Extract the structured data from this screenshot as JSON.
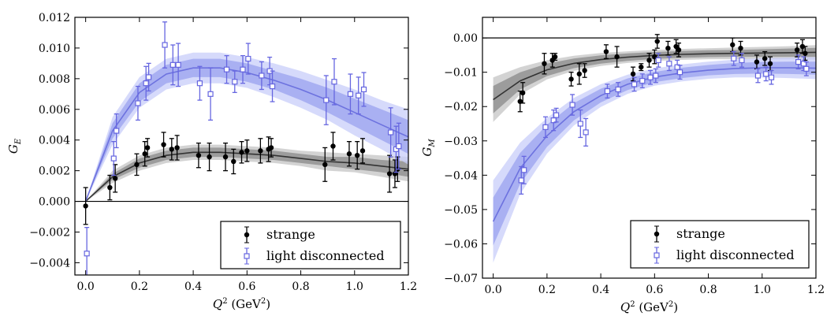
{
  "chart_data": [
    {
      "type": "scatter",
      "panel": "left",
      "ylabel_symbol": "G",
      "ylabel_sub": "E",
      "xlabel_q": "Q",
      "xlabel_sup": "2",
      "xlabel_unit_pre": " (GeV",
      "xlabel_unit_sup": "2",
      "xlabel_unit_post": ")",
      "xlim": [
        -0.04,
        1.2
      ],
      "ylim": [
        -0.0048,
        0.012
      ],
      "xticks": [
        0.0,
        0.2,
        0.4,
        0.6,
        0.8,
        1.0,
        1.2
      ],
      "xtick_labels": [
        "0.0",
        "0.2",
        "0.4",
        "0.6",
        "0.8",
        "1.0",
        "1.2"
      ],
      "yticks": [
        -0.004,
        -0.002,
        0.0,
        0.002,
        0.004,
        0.006,
        0.008,
        0.01,
        0.012
      ],
      "ytick_labels": [
        "−0.004",
        "−0.002",
        "0.000",
        "0.002",
        "0.004",
        "0.006",
        "0.008",
        "0.010",
        "0.012"
      ],
      "zero_line": 0,
      "legend": {
        "position": "bottom-right",
        "entries": [
          "strange",
          "light disconnected"
        ]
      },
      "series": [
        {
          "name": "strange",
          "color": "#000000",
          "marker": "filled-circle",
          "points": [
            [
              0.0,
              -0.0003,
              0.0012
            ],
            [
              0.09,
              0.0009,
              0.0008
            ],
            [
              0.11,
              0.0015,
              0.0009
            ],
            [
              0.19,
              0.0024,
              0.0007
            ],
            [
              0.22,
              0.0031,
              0.0008
            ],
            [
              0.23,
              0.0035,
              0.0006
            ],
            [
              0.29,
              0.0037,
              0.0008
            ],
            [
              0.32,
              0.0034,
              0.0007
            ],
            [
              0.34,
              0.0035,
              0.0008
            ],
            [
              0.42,
              0.003,
              0.0008
            ],
            [
              0.46,
              0.0029,
              0.0009
            ],
            [
              0.52,
              0.0029,
              0.0009
            ],
            [
              0.55,
              0.0026,
              0.0008
            ],
            [
              0.58,
              0.0032,
              0.0007
            ],
            [
              0.6,
              0.0033,
              0.0007
            ],
            [
              0.65,
              0.0033,
              0.0008
            ],
            [
              0.68,
              0.0034,
              0.0008
            ],
            [
              0.69,
              0.0035,
              0.0006
            ],
            [
              0.89,
              0.0024,
              0.0011
            ],
            [
              0.92,
              0.0036,
              0.0009
            ],
            [
              0.98,
              0.0031,
              0.0008
            ],
            [
              1.01,
              0.003,
              0.0009
            ],
            [
              1.03,
              0.0033,
              0.0008
            ],
            [
              1.13,
              0.0018,
              0.0012
            ],
            [
              1.15,
              0.0018,
              0.0009
            ],
            [
              1.16,
              0.0021,
              0.0008
            ]
          ],
          "fit_curve": [
            [
              0.0,
              0.0
            ],
            [
              0.1,
              0.0016
            ],
            [
              0.2,
              0.0025
            ],
            [
              0.3,
              0.003
            ],
            [
              0.4,
              0.0032
            ],
            [
              0.5,
              0.0032
            ],
            [
              0.6,
              0.0031
            ],
            [
              0.7,
              0.003
            ],
            [
              0.8,
              0.0028
            ],
            [
              0.9,
              0.0026
            ],
            [
              1.0,
              0.0025
            ],
            [
              1.1,
              0.0023
            ],
            [
              1.2,
              0.0021
            ]
          ],
          "band_inner": [
            0.0,
            0.0002,
            0.0003,
            0.0003,
            0.0003,
            0.0003,
            0.0003,
            0.0003,
            0.0003,
            0.0003,
            0.0004,
            0.0004,
            0.0005
          ],
          "band_outer": [
            0.0,
            0.0004,
            0.0005,
            0.0005,
            0.0005,
            0.0005,
            0.0005,
            0.0005,
            0.0005,
            0.0006,
            0.0006,
            0.0007,
            0.0008
          ]
        },
        {
          "name": "light disconnected",
          "color": "#6666e0",
          "marker": "open-square",
          "points": [
            [
              0.0,
              -0.0034,
              0.0017
            ],
            [
              0.1,
              0.0028,
              0.0011
            ],
            [
              0.11,
              0.0046,
              0.0011
            ],
            [
              0.19,
              0.0064,
              0.0011
            ],
            [
              0.22,
              0.0077,
              0.0011
            ],
            [
              0.23,
              0.0081,
              0.0009
            ],
            [
              0.29,
              0.0102,
              0.0015
            ],
            [
              0.32,
              0.0089,
              0.0013
            ],
            [
              0.34,
              0.0089,
              0.0014
            ],
            [
              0.42,
              0.0077,
              0.0011
            ],
            [
              0.46,
              0.007,
              0.0017
            ],
            [
              0.52,
              0.0086,
              0.0009
            ],
            [
              0.55,
              0.0078,
              0.0007
            ],
            [
              0.58,
              0.0086,
              0.0009
            ],
            [
              0.6,
              0.0093,
              0.001
            ],
            [
              0.65,
              0.0082,
              0.0009
            ],
            [
              0.68,
              0.0085,
              0.0009
            ],
            [
              0.69,
              0.0075,
              0.001
            ],
            [
              0.89,
              0.0066,
              0.0016
            ],
            [
              0.92,
              0.0078,
              0.0015
            ],
            [
              0.98,
              0.007,
              0.0013
            ],
            [
              1.01,
              0.0069,
              0.0012
            ],
            [
              1.03,
              0.0073,
              0.0011
            ],
            [
              1.13,
              0.0045,
              0.0016
            ],
            [
              1.15,
              0.0034,
              0.0015
            ],
            [
              1.16,
              0.0036,
              0.0015
            ]
          ],
          "fit_curve": [
            [
              0.0,
              0.0
            ],
            [
              0.1,
              0.0046
            ],
            [
              0.2,
              0.0071
            ],
            [
              0.3,
              0.0083
            ],
            [
              0.4,
              0.0087
            ],
            [
              0.5,
              0.0087
            ],
            [
              0.6,
              0.0084
            ],
            [
              0.7,
              0.0079
            ],
            [
              0.8,
              0.0073
            ],
            [
              0.9,
              0.0066
            ],
            [
              1.0,
              0.0058
            ],
            [
              1.1,
              0.005
            ],
            [
              1.2,
              0.0042
            ]
          ],
          "band_inner": [
            0.0,
            0.0005,
            0.0006,
            0.0006,
            0.0006,
            0.0006,
            0.0006,
            0.0006,
            0.0007,
            0.0008,
            0.0009,
            0.001,
            0.0011
          ],
          "band_outer": [
            0.0,
            0.0009,
            0.001,
            0.001,
            0.001,
            0.001,
            0.001,
            0.0011,
            0.0012,
            0.0013,
            0.0015,
            0.0016,
            0.0018
          ]
        }
      ]
    },
    {
      "type": "scatter",
      "panel": "right",
      "ylabel_symbol": "G",
      "ylabel_sub": "M",
      "xlabel_q": "Q",
      "xlabel_sup": "2",
      "xlabel_unit_pre": " (GeV",
      "xlabel_unit_sup": "2",
      "xlabel_unit_post": ")",
      "xlim": [
        -0.04,
        1.2
      ],
      "ylim": [
        -0.07,
        0.006
      ],
      "xticks": [
        0.0,
        0.2,
        0.4,
        0.6,
        0.8,
        1.0,
        1.2
      ],
      "xtick_labels": [
        "0.0",
        "0.2",
        "0.4",
        "0.6",
        "0.8",
        "1.0",
        "1.2"
      ],
      "yticks": [
        -0.07,
        -0.06,
        -0.05,
        -0.04,
        -0.03,
        -0.02,
        -0.01,
        0.0
      ],
      "ytick_labels": [
        "−0.07",
        "−0.06",
        "−0.05",
        "−0.04",
        "−0.03",
        "−0.02",
        "−0.01",
        "0.00"
      ],
      "zero_line": 0,
      "legend": {
        "position": "bottom-right",
        "entries": [
          "strange",
          "light disconnected"
        ]
      },
      "series": [
        {
          "name": "strange",
          "color": "#000000",
          "marker": "filled-circle",
          "points": [
            [
              0.1,
              -0.0185,
              0.003
            ],
            [
              0.11,
              -0.016,
              0.003
            ],
            [
              0.19,
              -0.0075,
              0.003
            ],
            [
              0.22,
              -0.0065,
              0.002
            ],
            [
              0.23,
              -0.0055,
              0.001
            ],
            [
              0.29,
              -0.012,
              0.002
            ],
            [
              0.32,
              -0.0105,
              0.003
            ],
            [
              0.34,
              -0.0095,
              0.002
            ],
            [
              0.42,
              -0.004,
              0.002
            ],
            [
              0.46,
              -0.0055,
              0.003
            ],
            [
              0.52,
              -0.0105,
              0.002
            ],
            [
              0.55,
              -0.0085,
              0.001
            ],
            [
              0.58,
              -0.0065,
              0.002
            ],
            [
              0.6,
              -0.0055,
              0.002
            ],
            [
              0.61,
              -0.001,
              0.002
            ],
            [
              0.65,
              -0.003,
              0.002
            ],
            [
              0.68,
              -0.0025,
              0.002
            ],
            [
              0.69,
              -0.0035,
              0.002
            ],
            [
              0.89,
              -0.002,
              0.002
            ],
            [
              0.92,
              -0.003,
              0.002
            ],
            [
              0.98,
              -0.007,
              0.002
            ],
            [
              1.01,
              -0.006,
              0.002
            ],
            [
              1.03,
              -0.0075,
              0.002
            ],
            [
              1.13,
              -0.0035,
              0.002
            ],
            [
              1.15,
              -0.0025,
              0.002
            ],
            [
              1.16,
              -0.0045,
              0.002
            ]
          ],
          "fit_curve": [
            [
              0.0,
              -0.018
            ],
            [
              0.1,
              -0.0125
            ],
            [
              0.2,
              -0.0093
            ],
            [
              0.3,
              -0.0074
            ],
            [
              0.4,
              -0.0063
            ],
            [
              0.5,
              -0.0056
            ],
            [
              0.6,
              -0.0051
            ],
            [
              0.7,
              -0.0048
            ],
            [
              0.8,
              -0.0046
            ],
            [
              0.9,
              -0.0045
            ],
            [
              1.0,
              -0.0044
            ],
            [
              1.1,
              -0.0043
            ],
            [
              1.2,
              -0.0042
            ]
          ],
          "band_inner": [
            0.004,
            0.0025,
            0.0018,
            0.0014,
            0.0012,
            0.0011,
            0.001,
            0.001,
            0.001,
            0.001,
            0.0011,
            0.0012,
            0.0013
          ],
          "band_outer": [
            0.0065,
            0.004,
            0.0028,
            0.0022,
            0.0019,
            0.0017,
            0.0016,
            0.0016,
            0.0016,
            0.0017,
            0.0018,
            0.0019,
            0.0021
          ]
        },
        {
          "name": "light disconnected",
          "color": "#6666e0",
          "marker": "open-square",
          "points": [
            [
              0.1,
              -0.0415,
              0.004
            ],
            [
              0.11,
              -0.0385,
              0.004
            ],
            [
              0.19,
              -0.026,
              0.003
            ],
            [
              0.22,
              -0.024,
              0.003
            ],
            [
              0.23,
              -0.0225,
              0.002
            ],
            [
              0.29,
              -0.0195,
              0.003
            ],
            [
              0.32,
              -0.025,
              0.004
            ],
            [
              0.34,
              -0.0275,
              0.004
            ],
            [
              0.42,
              -0.0155,
              0.002
            ],
            [
              0.46,
              -0.015,
              0.002
            ],
            [
              0.52,
              -0.0135,
              0.002
            ],
            [
              0.55,
              -0.0125,
              0.002
            ],
            [
              0.58,
              -0.0115,
              0.002
            ],
            [
              0.6,
              -0.011,
              0.002
            ],
            [
              0.61,
              -0.0065,
              0.002
            ],
            [
              0.65,
              -0.0075,
              0.002
            ],
            [
              0.68,
              -0.0085,
              0.002
            ],
            [
              0.69,
              -0.01,
              0.002
            ],
            [
              0.89,
              -0.006,
              0.002
            ],
            [
              0.92,
              -0.0065,
              0.002
            ],
            [
              0.98,
              -0.011,
              0.002
            ],
            [
              1.01,
              -0.0105,
              0.002
            ],
            [
              1.03,
              -0.0115,
              0.002
            ],
            [
              1.13,
              -0.007,
              0.002
            ],
            [
              1.15,
              -0.0075,
              0.002
            ],
            [
              1.16,
              -0.009,
              0.002
            ]
          ],
          "fit_curve": [
            [
              0.0,
              -0.0535
            ],
            [
              0.1,
              -0.038
            ],
            [
              0.2,
              -0.0285
            ],
            [
              0.3,
              -0.0215
            ],
            [
              0.4,
              -0.0168
            ],
            [
              0.5,
              -0.0135
            ],
            [
              0.6,
              -0.0114
            ],
            [
              0.7,
              -0.0102
            ],
            [
              0.8,
              -0.0094
            ],
            [
              0.9,
              -0.0089
            ],
            [
              1.0,
              -0.0087
            ],
            [
              1.1,
              -0.0087
            ],
            [
              1.2,
              -0.0088
            ]
          ],
          "band_inner": [
            0.007,
            0.0045,
            0.0032,
            0.0025,
            0.002,
            0.0017,
            0.0015,
            0.0015,
            0.0015,
            0.0016,
            0.0017,
            0.0018,
            0.0019
          ],
          "band_outer": [
            0.012,
            0.0075,
            0.0052,
            0.004,
            0.0033,
            0.0028,
            0.0025,
            0.0025,
            0.0025,
            0.0026,
            0.0028,
            0.003,
            0.0032
          ]
        }
      ]
    }
  ]
}
